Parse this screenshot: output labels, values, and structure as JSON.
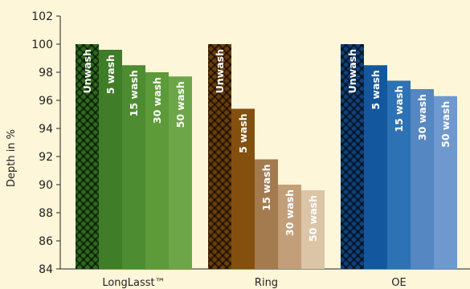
{
  "chart_data": {
    "type": "bar",
    "ylabel": "Depth in %",
    "ylim": [
      84,
      102
    ],
    "yticks": [
      84,
      86,
      88,
      90,
      92,
      94,
      96,
      98,
      100,
      102
    ],
    "grid": false,
    "groups": [
      {
        "name": "LongLasst™",
        "bars": [
          {
            "label": "Unwash",
            "value": 100.0,
            "color": "#2e6a1e",
            "pattern": "crosshatch"
          },
          {
            "label": "5 wash",
            "value": 99.6,
            "color": "#3f7d28"
          },
          {
            "label": "15 wash",
            "value": 98.5,
            "color": "#4d8c30"
          },
          {
            "label": "30 wash",
            "value": 98.0,
            "color": "#5c9a3a"
          },
          {
            "label": "50 wash",
            "value": 97.7,
            "color": "#6da648"
          }
        ]
      },
      {
        "name": "Ring",
        "bars": [
          {
            "label": "Unwash",
            "value": 100.0,
            "color": "#6b3f08",
            "pattern": "crosshatch"
          },
          {
            "label": "5 wash",
            "value": 95.4,
            "color": "#84500f"
          },
          {
            "label": "15 wash",
            "value": 91.8,
            "color": "#a47a4f"
          },
          {
            "label": "30 wash",
            "value": 90.0,
            "color": "#c39f79"
          },
          {
            "label": "50 wash",
            "value": 89.6,
            "color": "#dcc4a6"
          }
        ]
      },
      {
        "name": "OE",
        "bars": [
          {
            "label": "Unwash",
            "value": 100.0,
            "color": "#10417b",
            "pattern": "crosshatch"
          },
          {
            "label": "5 wash",
            "value": 98.5,
            "color": "#13589e"
          },
          {
            "label": "15 wash",
            "value": 97.4,
            "color": "#2d72b4"
          },
          {
            "label": "30 wash",
            "value": 96.8,
            "color": "#5587c2"
          },
          {
            "label": "50 wash",
            "value": 96.3,
            "color": "#6f98cf"
          }
        ]
      }
    ]
  }
}
